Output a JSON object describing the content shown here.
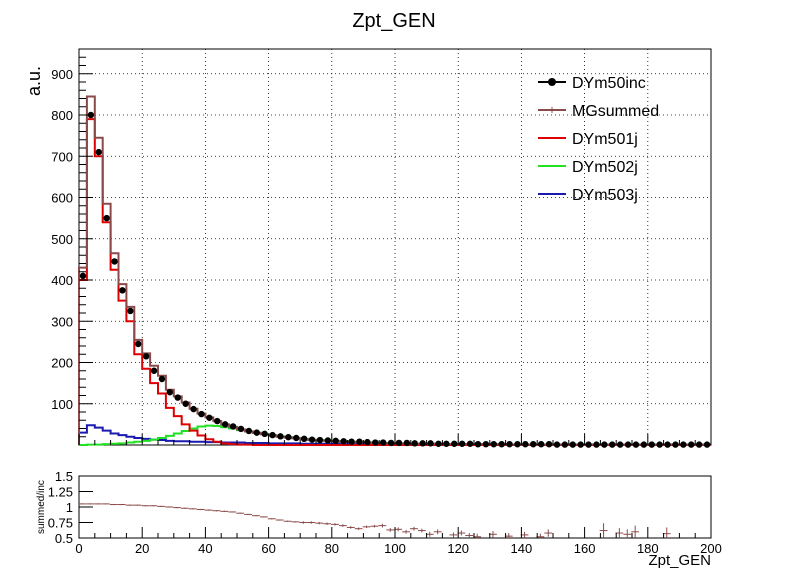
{
  "chart_data": [
    {
      "type": "line",
      "title": "Zpt_GEN",
      "xlabel": "",
      "ylabel": "a.u.",
      "xlim": [
        0,
        200
      ],
      "ylim": [
        0,
        960
      ],
      "grid": true,
      "legend_position": "top-right",
      "bin_width": 2.5,
      "x_ticks": [
        0,
        20,
        40,
        60,
        80,
        100,
        120,
        140,
        160,
        180,
        200
      ],
      "y_ticks": [
        100,
        200,
        300,
        400,
        500,
        600,
        700,
        800,
        900
      ],
      "series": [
        {
          "name": "DYm50inc",
          "color": "#000000",
          "style": "markers",
          "values": [
            410,
            800,
            710,
            550,
            445,
            375,
            325,
            245,
            215,
            180,
            160,
            128,
            115,
            100,
            87,
            75,
            66,
            58,
            50,
            45,
            39,
            34,
            30,
            27,
            24,
            21,
            19,
            17,
            15,
            13,
            12,
            11,
            10,
            9,
            8,
            8,
            7,
            6,
            6,
            5,
            5,
            5,
            4,
            4,
            4,
            3,
            3,
            3,
            3,
            3,
            2,
            2,
            2,
            2,
            2,
            2,
            2,
            2,
            2,
            2,
            1,
            1,
            1,
            1,
            1,
            1,
            1,
            1,
            1,
            1,
            1,
            1,
            1,
            1,
            1,
            1,
            1,
            1,
            1,
            1
          ]
        },
        {
          "name": "MGsummed",
          "color": "#8b4a4a",
          "style": "step",
          "values": [
            430,
            845,
            745,
            585,
            465,
            390,
            335,
            255,
            222,
            192,
            168,
            134,
            118,
            103,
            88,
            76,
            67,
            58,
            50,
            44,
            38,
            33,
            29,
            26,
            23,
            20,
            18,
            16,
            14,
            12,
            11,
            10,
            9,
            8,
            7,
            6,
            6,
            5,
            5,
            4,
            4,
            4,
            3,
            3,
            3,
            3,
            2,
            2,
            2,
            2,
            2,
            2,
            2,
            2,
            1,
            1,
            1,
            1,
            1,
            1,
            1,
            1,
            1,
            1,
            1,
            1,
            1,
            1,
            1,
            1,
            1,
            1,
            1,
            1,
            1,
            1,
            1,
            1,
            1,
            1
          ]
        },
        {
          "name": "DYm501j",
          "color": "#dd0000",
          "style": "step",
          "values": [
            400,
            790,
            700,
            540,
            425,
            350,
            300,
            220,
            185,
            150,
            125,
            90,
            70,
            50,
            35,
            23,
            14,
            8,
            4,
            2,
            1,
            1,
            0,
            0,
            0,
            0,
            0,
            0,
            0,
            0,
            0,
            0,
            0,
            0,
            0,
            0,
            0,
            0,
            0,
            0,
            0,
            0,
            0,
            0,
            0,
            0,
            0,
            0,
            0,
            0,
            0,
            0,
            0,
            0,
            0,
            0,
            0,
            0,
            0,
            0,
            0,
            0,
            0,
            0,
            0,
            0,
            0,
            0,
            0,
            0,
            0,
            0,
            0,
            0,
            0,
            0,
            0,
            0,
            0,
            0
          ]
        },
        {
          "name": "DYm502j",
          "color": "#22e022",
          "style": "step",
          "values": [
            0,
            1,
            1,
            2,
            3,
            4,
            6,
            8,
            10,
            13,
            17,
            22,
            28,
            34,
            40,
            45,
            47,
            46,
            43,
            40,
            36,
            33,
            30,
            27,
            24,
            21,
            19,
            17,
            15,
            13,
            12,
            11,
            10,
            9,
            8,
            7,
            6,
            6,
            5,
            5,
            4,
            4,
            3,
            3,
            3,
            2,
            2,
            2,
            2,
            2,
            1,
            1,
            1,
            1,
            1,
            1,
            1,
            1,
            1,
            1,
            0,
            0,
            0,
            0,
            0,
            0,
            0,
            0,
            0,
            0,
            0,
            0,
            0,
            0,
            0,
            0,
            0,
            0,
            0,
            0
          ]
        },
        {
          "name": "DYm503j",
          "color": "#1a1ab0",
          "style": "step",
          "values": [
            30,
            48,
            42,
            35,
            28,
            24,
            20,
            17,
            15,
            13,
            12,
            10,
            9,
            9,
            8,
            8,
            7,
            7,
            6,
            6,
            6,
            5,
            5,
            5,
            4,
            4,
            4,
            4,
            3,
            3,
            3,
            3,
            3,
            2,
            2,
            2,
            2,
            2,
            2,
            2,
            1,
            1,
            1,
            1,
            1,
            1,
            1,
            1,
            1,
            1,
            1,
            1,
            1,
            1,
            1,
            1,
            1,
            1,
            1,
            1,
            1,
            1,
            1,
            1,
            1,
            1,
            1,
            1,
            1,
            1,
            1,
            1,
            1,
            1,
            1,
            1,
            1,
            1,
            1,
            1
          ]
        }
      ]
    },
    {
      "type": "scatter",
      "title": "",
      "xlabel": "Zpt_GEN",
      "ylabel": "summed/inc",
      "xlim": [
        0,
        200
      ],
      "ylim": [
        0.5,
        1.5
      ],
      "grid": false,
      "x_ticks": [
        0,
        20,
        40,
        60,
        80,
        100,
        120,
        140,
        160,
        180,
        200
      ],
      "y_ticks": [
        0.5,
        0.75,
        1,
        1.25,
        1.5
      ],
      "y_tick_labels": [
        "0.5",
        "0.75",
        "1",
        "1.25",
        "1.5"
      ],
      "series": [
        {
          "name": "",
          "color": "#8b4a4a",
          "points": [
            [
              1,
              1.05
            ],
            [
              3.5,
              1.05
            ],
            [
              6,
              1.05
            ],
            [
              8.5,
              1.05
            ],
            [
              11,
              1.04
            ],
            [
              13.5,
              1.04
            ],
            [
              16,
              1.03
            ],
            [
              18.5,
              1.03
            ],
            [
              21,
              1.02
            ],
            [
              23.5,
              1.02
            ],
            [
              26,
              1.01
            ],
            [
              28.5,
              1.0
            ],
            [
              31,
              0.99
            ],
            [
              33.5,
              0.98
            ],
            [
              36,
              0.97
            ],
            [
              38.5,
              0.96
            ],
            [
              41,
              0.95
            ],
            [
              43.5,
              0.94
            ],
            [
              46,
              0.93
            ],
            [
              48.5,
              0.92
            ],
            [
              51,
              0.9
            ],
            [
              53.5,
              0.88
            ],
            [
              56,
              0.86
            ],
            [
              58.5,
              0.84
            ],
            [
              61,
              0.81
            ],
            [
              63.5,
              0.79
            ],
            [
              66,
              0.77
            ],
            [
              68.5,
              0.76
            ],
            [
              71,
              0.75
            ],
            [
              73.5,
              0.75
            ],
            [
              76,
              0.74
            ],
            [
              78.5,
              0.73
            ],
            [
              81,
              0.72
            ],
            [
              83.5,
              0.7
            ],
            [
              86,
              0.67
            ],
            [
              88.5,
              0.65
            ],
            [
              91,
              0.68
            ],
            [
              93.5,
              0.69
            ],
            [
              96,
              0.7
            ],
            [
              98.5,
              0.63
            ],
            [
              101,
              0.64
            ],
            [
              103.5,
              0.6
            ],
            [
              106,
              0.65
            ],
            [
              108.5,
              0.62
            ],
            [
              111,
              0.56
            ],
            [
              113.5,
              0.6
            ],
            [
              118.5,
              0.55
            ],
            [
              121,
              0.58
            ],
            [
              123.5,
              0.54
            ],
            [
              126,
              0.52
            ],
            [
              131,
              0.56
            ],
            [
              136,
              0.53
            ],
            [
              141,
              0.55
            ],
            [
              146,
              0.52
            ],
            [
              148.5,
              0.58
            ],
            [
              166,
              0.62
            ],
            [
              171,
              0.58
            ],
            [
              173.5,
              0.56
            ],
            [
              176,
              0.6
            ],
            [
              186,
              0.57
            ]
          ],
          "errors": [
            0.01,
            0.01,
            0.01,
            0.01,
            0.01,
            0.01,
            0.01,
            0.01,
            0.01,
            0.01,
            0.01,
            0.01,
            0.01,
            0.01,
            0.01,
            0.01,
            0.01,
            0.01,
            0.01,
            0.01,
            0.01,
            0.01,
            0.01,
            0.01,
            0.01,
            0.01,
            0.01,
            0.01,
            0.02,
            0.02,
            0.02,
            0.02,
            0.02,
            0.02,
            0.02,
            0.02,
            0.02,
            0.02,
            0.03,
            0.03,
            0.03,
            0.03,
            0.03,
            0.03,
            0.04,
            0.04,
            0.04,
            0.04,
            0.04,
            0.05,
            0.05,
            0.05,
            0.05,
            0.05,
            0.06,
            0.12,
            0.08,
            0.08,
            0.1,
            0.1
          ]
        }
      ]
    }
  ]
}
